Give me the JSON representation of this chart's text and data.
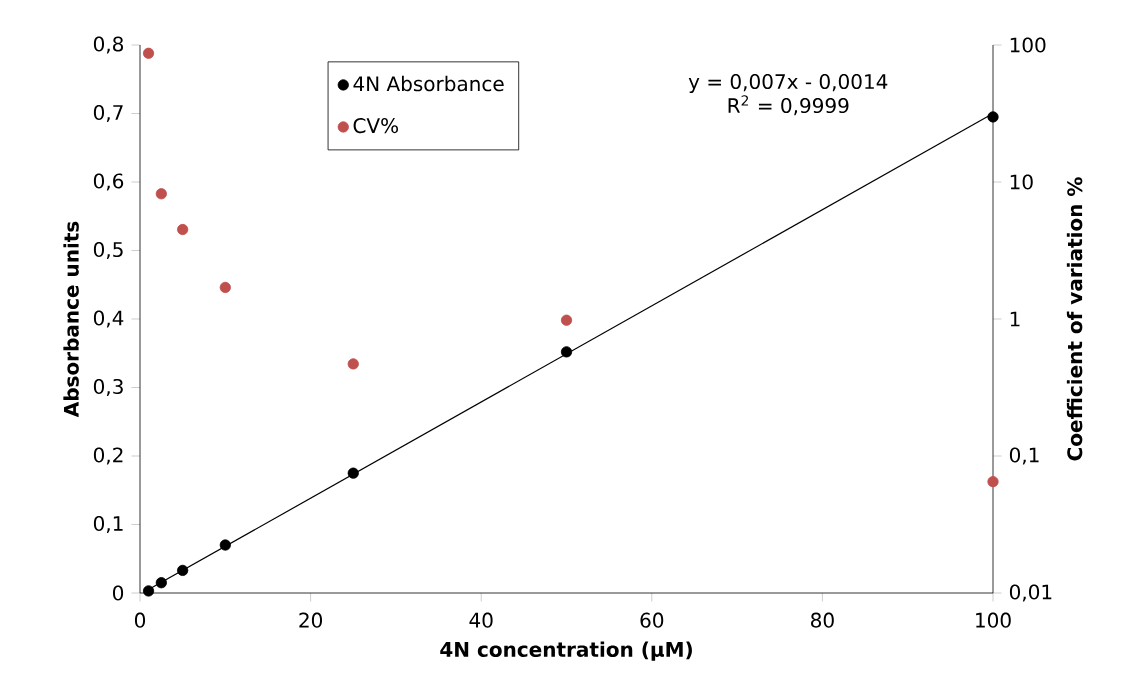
{
  "chart_data": {
    "type": "scatter",
    "xlabel": "4N  concentration (µM)",
    "ylabel": "Absorbance units",
    "y2label": "Coefficient of variation %",
    "xlim": [
      0,
      100
    ],
    "xticks": [
      0,
      20,
      40,
      60,
      80,
      100
    ],
    "ylim": [
      0,
      0.8
    ],
    "yticks": [
      0,
      {
        "value": 0.1,
        "label": "0,1"
      },
      {
        "value": 0.2,
        "label": "0,2"
      },
      {
        "value": 0.3,
        "label": "0,3"
      },
      {
        "value": 0.4,
        "label": "0,4"
      },
      {
        "value": 0.5,
        "label": "0,5"
      },
      {
        "value": 0.6,
        "label": "0,6"
      },
      {
        "value": 0.7,
        "label": "0,7"
      },
      {
        "value": 0.8,
        "label": "0,8"
      }
    ],
    "y2lim": [
      0.01,
      100
    ],
    "y2ticks": [
      {
        "value": 0.01,
        "label": "0,01"
      },
      {
        "value": 0.1,
        "label": "0,1"
      },
      1,
      10,
      100
    ],
    "log": "y2",
    "legend": "top left",
    "grid": false,
    "annotations": [
      "y = 0,007x - 0,0014",
      "R$^{2}$ = 0,9999"
    ],
    "series": [
      {
        "name": "4N Absorbance",
        "marker": "circle",
        "color": "#000000",
        "x": [
          1,
          2.5,
          5,
          10,
          25,
          50,
          100
        ],
        "values": [
          0.003,
          0.015,
          0.033,
          0.07,
          0.175,
          0.352,
          0.695
        ]
      },
      {
        "name": "CV%",
        "marker": "circle",
        "axis": "y2",
        "color": "#c0504d",
        "x": [
          1,
          2.5,
          5,
          10,
          25,
          50,
          100
        ],
        "values": [
          87,
          8.2,
          4.5,
          1.7,
          0.47,
          0.98,
          0.065
        ]
      },
      {
        "type": "line",
        "marker": "none",
        "color": "#000000",
        "line_style": "solid",
        "x": [
          1,
          100
        ],
        "values": [
          0.005,
          0.7
        ]
      }
    ]
  }
}
